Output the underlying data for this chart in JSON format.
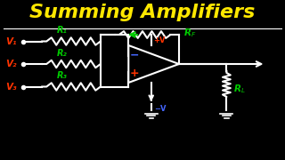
{
  "title": "Summing Amplifiers",
  "title_color": "#FFE800",
  "bg_color": "#000000",
  "circuit_color": "#FFFFFF",
  "v_color": "#FF3300",
  "r_color": "#00CC00",
  "v_labels": [
    "V₁",
    "V₂",
    "V₃"
  ],
  "r_labels": [
    "R₁",
    "R₂",
    "R₃"
  ],
  "rf_label": "R_F",
  "rl_label": "R_L",
  "plus_color": "#FF3300",
  "minus_color": "#4466FF",
  "fb_arrow_color": "#00CC00"
}
